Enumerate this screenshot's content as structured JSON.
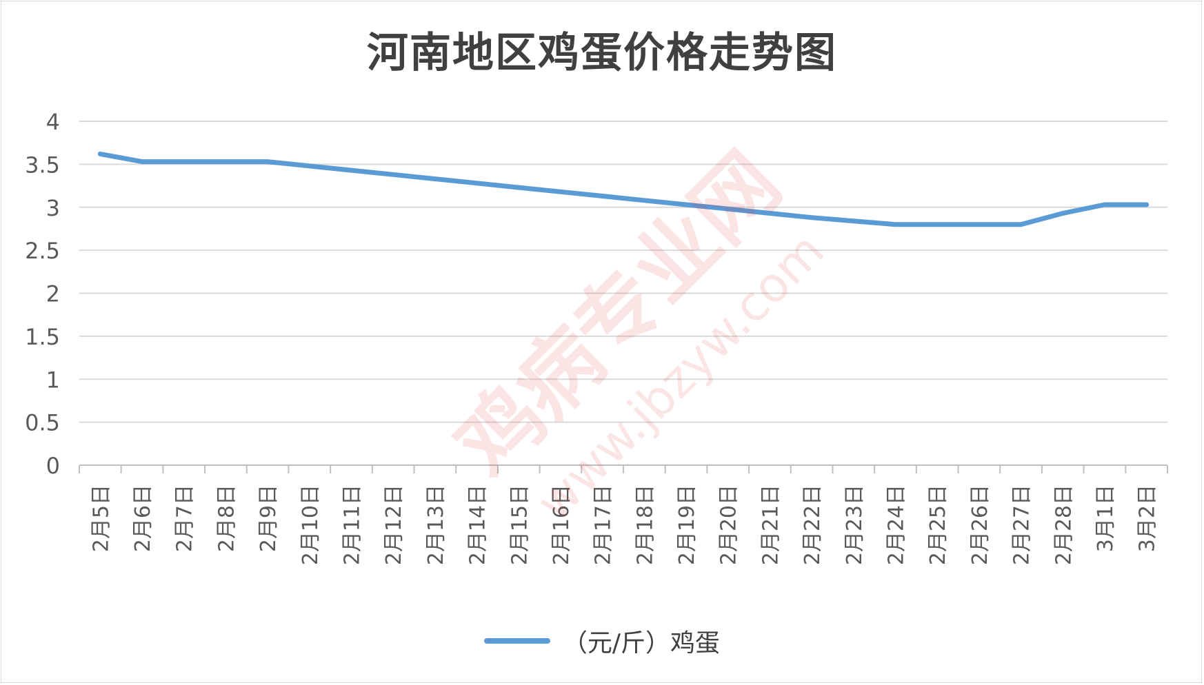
{
  "chart_data": {
    "type": "line",
    "title": "河南地区鸡蛋价格走势图",
    "categories": [
      "2月5日",
      "2月6日",
      "2月7日",
      "2月8日",
      "2月9日",
      "2月10日",
      "2月11日",
      "2月12日",
      "2月13日",
      "2月14日",
      "2月15日",
      "2月16日",
      "2月17日",
      "2月18日",
      "2月19日",
      "2月20日",
      "2月21日",
      "2月22日",
      "2月23日",
      "2月24日",
      "2月25日",
      "2月26日",
      "2月27日",
      "2月28日",
      "3月1日",
      "3月2日"
    ],
    "series": [
      {
        "name": "（元/斤）鸡蛋",
        "color": "#5b9bd5",
        "values": [
          3.62,
          3.53,
          3.53,
          3.53,
          3.53,
          3.48,
          3.43,
          3.38,
          3.33,
          3.28,
          3.23,
          3.18,
          3.13,
          3.08,
          3.03,
          2.98,
          2.93,
          2.88,
          2.84,
          2.8,
          2.8,
          2.8,
          2.8,
          2.93,
          3.03,
          3.03
        ]
      }
    ],
    "ylim": [
      0,
      4
    ],
    "yticks": [
      "0",
      "0.5",
      "1",
      "1.5",
      "2",
      "2.5",
      "3",
      "3.5",
      "4"
    ],
    "grid": true,
    "legend": "bottom",
    "xlabel": "",
    "ylabel": ""
  },
  "watermark": {
    "text": "鸡病专业网",
    "url": "www.jbzyw.com",
    "color": "#e02a2a"
  }
}
